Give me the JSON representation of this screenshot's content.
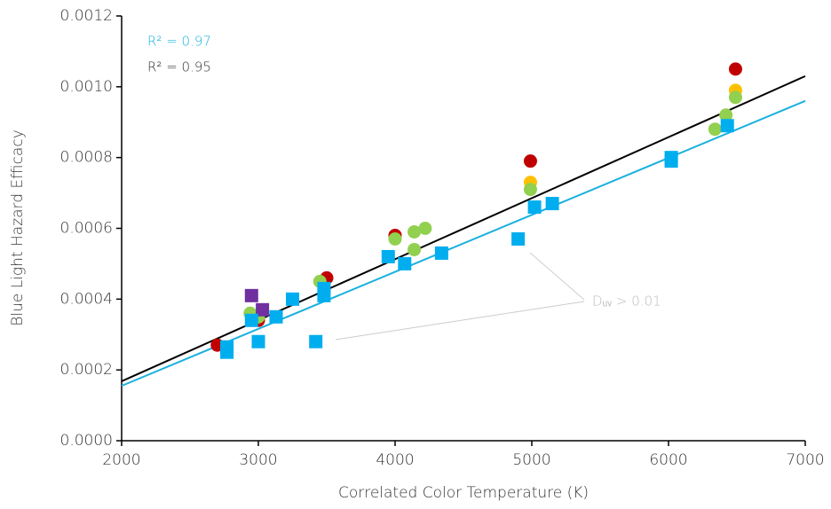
{
  "chart_data": {
    "type": "scatter",
    "xlabel": "Correlated Color Temperature (K)",
    "ylabel": "Blue Light Hazard Efficacy",
    "xlim": [
      2000,
      7000
    ],
    "xticks": [
      2000,
      3000,
      4000,
      5000,
      6000,
      7000
    ],
    "ylim": [
      0,
      0.0012
    ],
    "yticks": [
      {
        "value": 0,
        "label": "0.0000"
      },
      {
        "value": 0.0002,
        "label": "0.0002"
      },
      {
        "value": 0.0004,
        "label": "0.0004"
      },
      {
        "value": 0.0006,
        "label": "0.0006"
      },
      {
        "value": 0.0008,
        "label": "0.0008"
      },
      {
        "value": 0.001,
        "label": "0.0010"
      },
      {
        "value": 0.0012,
        "label": "0.0012"
      }
    ],
    "grid": false,
    "series": [
      {
        "marker": "circle",
        "color": "#c00000",
        "x": [
          2700,
          3000,
          3500,
          4000,
          4990,
          6490
        ],
        "values": [
          0.00027,
          0.00034,
          0.00046,
          0.00058,
          0.00079,
          0.00105
        ]
      },
      {
        "marker": "circle",
        "color": "#ffc000",
        "x": [
          3000,
          4990,
          6490
        ],
        "values": [
          0.00035,
          0.00073,
          0.00099
        ]
      },
      {
        "marker": "circle",
        "color": "#92d050",
        "x": [
          2940,
          3000,
          3450,
          4000,
          4140,
          4220,
          4140,
          4990,
          6340,
          6420,
          6490
        ],
        "values": [
          0.00036,
          0.00035,
          0.00045,
          0.00057,
          0.00059,
          0.0006,
          0.00054,
          0.00071,
          0.00088,
          0.00092,
          0.00097
        ]
      },
      {
        "marker": "square",
        "color": "#00aeef",
        "x": [
          2770,
          2770,
          2950,
          3000,
          3130,
          3250,
          3420,
          3480,
          3480,
          3950,
          4070,
          4340,
          4900,
          5020,
          5150,
          6020,
          6020,
          6430
        ],
        "values": [
          0.000265,
          0.00025,
          0.00034,
          0.00028,
          0.00035,
          0.0004,
          0.00028,
          0.00041,
          0.00043,
          0.00052,
          0.0005,
          0.00053,
          0.00057,
          0.00066,
          0.00067,
          0.0008,
          0.00079,
          0.00089
        ]
      },
      {
        "marker": "square",
        "color": "#7030a0",
        "x": [
          2950,
          3030
        ],
        "values": [
          0.00041,
          0.00037
        ]
      },
      {
        "marker": "line",
        "color": "#000000",
        "x": [
          2000,
          7000
        ],
        "values": [
          0.000168,
          0.00103
        ]
      },
      {
        "marker": "line",
        "color": "#1ab0e0",
        "x": [
          2000,
          7000
        ],
        "values": [
          0.000155,
          0.00096
        ]
      }
    ],
    "annotations": [
      {
        "text": "R² = 0.97",
        "color": "#1ab0e0"
      },
      {
        "text": "R² = 0.95",
        "color": "#333333"
      },
      {
        "text": "Dᵤᵥ > 0.01",
        "color": "#bbbbbb"
      }
    ]
  }
}
